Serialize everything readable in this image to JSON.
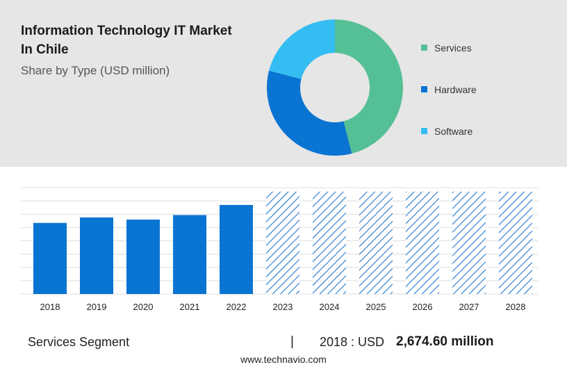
{
  "header": {
    "title": "Information Technology IT Market In Chile",
    "subtitle": "Share by Type (USD million)"
  },
  "colors": {
    "services": "#55c095",
    "hardware": "#0a74d2",
    "software": "#34bdf2",
    "forecast_hatch": "#1f77d0",
    "panel_bg": "#e6e6e6"
  },
  "chart_data": [
    {
      "type": "pie",
      "variant": "donut",
      "series": [
        {
          "name": "Services",
          "value": 46
        },
        {
          "name": "Hardware",
          "value": 33
        },
        {
          "name": "Software",
          "value": 21
        }
      ],
      "legend_placement": "right"
    },
    {
      "type": "bar",
      "categories": [
        "2018",
        "2019",
        "2020",
        "2021",
        "2022",
        "2023",
        "2024",
        "2025",
        "2026",
        "2027",
        "2028"
      ],
      "values": [
        2674.6,
        2880,
        2800,
        2970,
        3350,
        3850,
        3850,
        3850,
        3850,
        3850,
        3850
      ],
      "forecast_from": "2023",
      "ylim": [
        0,
        4000
      ],
      "grid": true,
      "y_tick_labels": false
    }
  ],
  "footer": {
    "segment": "Services Segment",
    "separator": "|",
    "year_label": "2018 : USD",
    "value": "2,674.60 million",
    "url": "www.technavio.com"
  }
}
